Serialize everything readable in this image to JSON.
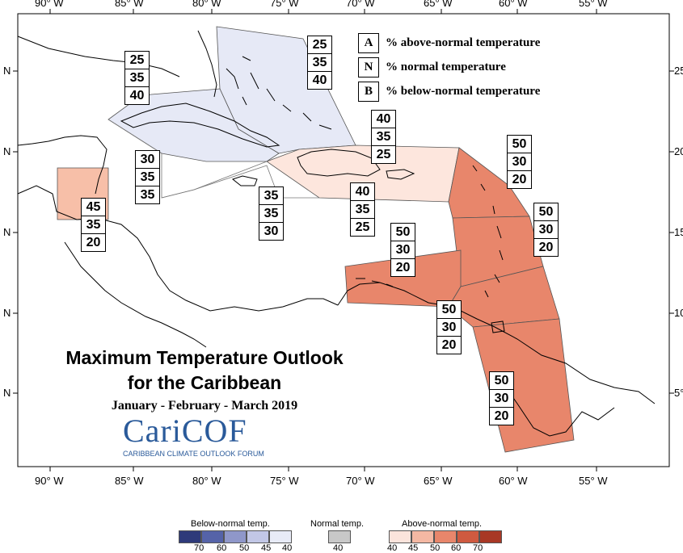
{
  "map": {
    "lon_labels": [
      "90° W",
      "85° W",
      "80° W",
      "75° W",
      "70° W",
      "65° W",
      "60° W",
      "55° W"
    ],
    "lat_labels": [
      "N",
      "N",
      "N",
      "N",
      "N"
    ],
    "lat_labels_right": [
      "25",
      "20",
      "15",
      "10",
      "5°"
    ]
  },
  "key": {
    "items": [
      {
        "letter": "A",
        "text": "% above-normal temperature"
      },
      {
        "letter": "N",
        "text": "% normal temperature"
      },
      {
        "letter": "B",
        "text": "% below-normal temperature"
      }
    ]
  },
  "forecasts": [
    {
      "A": "25",
      "N": "35",
      "B": "40"
    },
    {
      "A": "25",
      "N": "35",
      "B": "40"
    },
    {
      "A": "40",
      "N": "35",
      "B": "25"
    },
    {
      "A": "30",
      "N": "35",
      "B": "35"
    },
    {
      "A": "35",
      "N": "35",
      "B": "30"
    },
    {
      "A": "40",
      "N": "35",
      "B": "25"
    },
    {
      "A": "50",
      "N": "30",
      "B": "20"
    },
    {
      "A": "45",
      "N": "35",
      "B": "20"
    },
    {
      "A": "50",
      "N": "30",
      "B": "20"
    },
    {
      "A": "50",
      "N": "30",
      "B": "20"
    },
    {
      "A": "50",
      "N": "30",
      "B": "20"
    },
    {
      "A": "50",
      "N": "30",
      "B": "20"
    }
  ],
  "title": {
    "line1": "Maximum Temperature Outlook",
    "line2": "for the Caribbean",
    "period": "January - February - March 2019"
  },
  "logo": {
    "name": "CariCOF",
    "tagline": "CARIBBEAN CLIMATE OUTLOOK FORUM"
  },
  "colorbar": {
    "below_title": "Below-normal temp.",
    "normal_title": "Normal temp.",
    "above_title": "Above-normal temp.",
    "below_labels": [
      "70",
      "60",
      "50",
      "45",
      "40"
    ],
    "normal_labels": [
      "40"
    ],
    "above_labels": [
      "40",
      "45",
      "50",
      "60",
      "70"
    ],
    "below_colors": [
      "#2e3a7a",
      "#5563a8",
      "#8f97c9",
      "#c2c7e6",
      "#e8ebf7"
    ],
    "normal_color": "#c8c8c8",
    "above_colors": [
      "#fbe4dc",
      "#f4b8a3",
      "#e8866b",
      "#cf5a40",
      "#a83825"
    ]
  }
}
